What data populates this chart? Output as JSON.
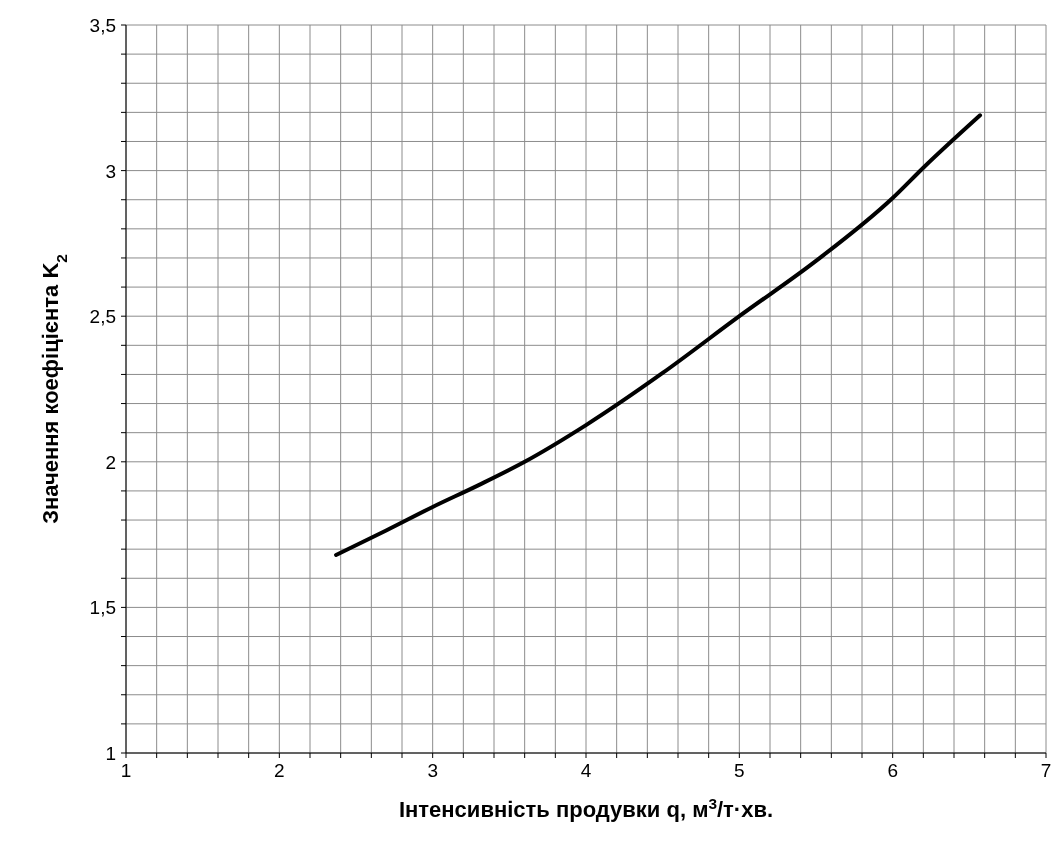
{
  "chart_data": {
    "type": "line",
    "xlabel": "Інтенсивність продувки q, м$^{3}$/т·хв.",
    "ylabel": "Значення коефіцієнта K$_{2}$",
    "x": [
      2.37,
      2.7,
      3,
      3.3,
      3.6,
      4,
      4.5,
      5,
      5.5,
      6,
      6.2,
      6.57
    ],
    "series": [
      {
        "color": "#000000",
        "values": [
          1.68,
          1.765,
          1.845,
          1.92,
          2.0,
          2.126,
          2.305,
          2.5,
          2.69,
          2.906,
          3.01,
          3.19
        ]
      }
    ],
    "xlim": [
      1,
      7
    ],
    "ylim": [
      1,
      3.5
    ],
    "xticks": [
      1,
      {
        "value": 1.2,
        "label": null
      },
      {
        "value": 1.4,
        "label": null
      },
      {
        "value": 1.6,
        "label": null
      },
      {
        "value": 1.8,
        "label": null
      },
      2,
      {
        "value": 2.2,
        "label": null
      },
      {
        "value": 2.4,
        "label": null
      },
      {
        "value": 2.6,
        "label": null
      },
      {
        "value": 2.8,
        "label": null
      },
      3,
      {
        "value": 3.2,
        "label": null
      },
      {
        "value": 3.4,
        "label": null
      },
      {
        "value": 3.6,
        "label": null
      },
      {
        "value": 3.8,
        "label": null
      },
      4,
      {
        "value": 4.2,
        "label": null
      },
      {
        "value": 4.4,
        "label": null
      },
      {
        "value": 4.6,
        "label": null
      },
      {
        "value": 4.8,
        "label": null
      },
      5,
      {
        "value": 5.2,
        "label": null
      },
      {
        "value": 5.4,
        "label": null
      },
      {
        "value": 5.6,
        "label": null
      },
      {
        "value": 5.8,
        "label": null
      },
      6,
      {
        "value": 6.2,
        "label": null
      },
      {
        "value": 6.4,
        "label": null
      },
      {
        "value": 6.6,
        "label": null
      },
      {
        "value": 6.8,
        "label": null
      },
      7
    ],
    "yticks": [
      1,
      {
        "value": 1.1,
        "label": null
      },
      {
        "value": 1.2,
        "label": null
      },
      {
        "value": 1.3,
        "label": null
      },
      {
        "value": 1.4,
        "label": null
      },
      {
        "value": 1.5,
        "label": "1,5"
      },
      {
        "value": 1.6,
        "label": null
      },
      {
        "value": 1.7,
        "label": null
      },
      {
        "value": 1.8,
        "label": null
      },
      {
        "value": 1.9,
        "label": null
      },
      2,
      {
        "value": 2.1,
        "label": null
      },
      {
        "value": 2.2,
        "label": null
      },
      {
        "value": 2.3,
        "label": null
      },
      {
        "value": 2.4,
        "label": null
      },
      {
        "value": 2.5,
        "label": "2,5"
      },
      {
        "value": 2.6,
        "label": null
      },
      {
        "value": 2.7,
        "label": null
      },
      {
        "value": 2.8,
        "label": null
      },
      {
        "value": 2.9,
        "label": null
      },
      3,
      {
        "value": 3.1,
        "label": null
      },
      {
        "value": 3.2,
        "label": null
      },
      {
        "value": 3.3,
        "label": null
      },
      {
        "value": 3.4,
        "label": null
      },
      {
        "value": 3.5,
        "label": "3,5"
      }
    ],
    "grid": true,
    "marker": "none",
    "line_style": "solid"
  }
}
